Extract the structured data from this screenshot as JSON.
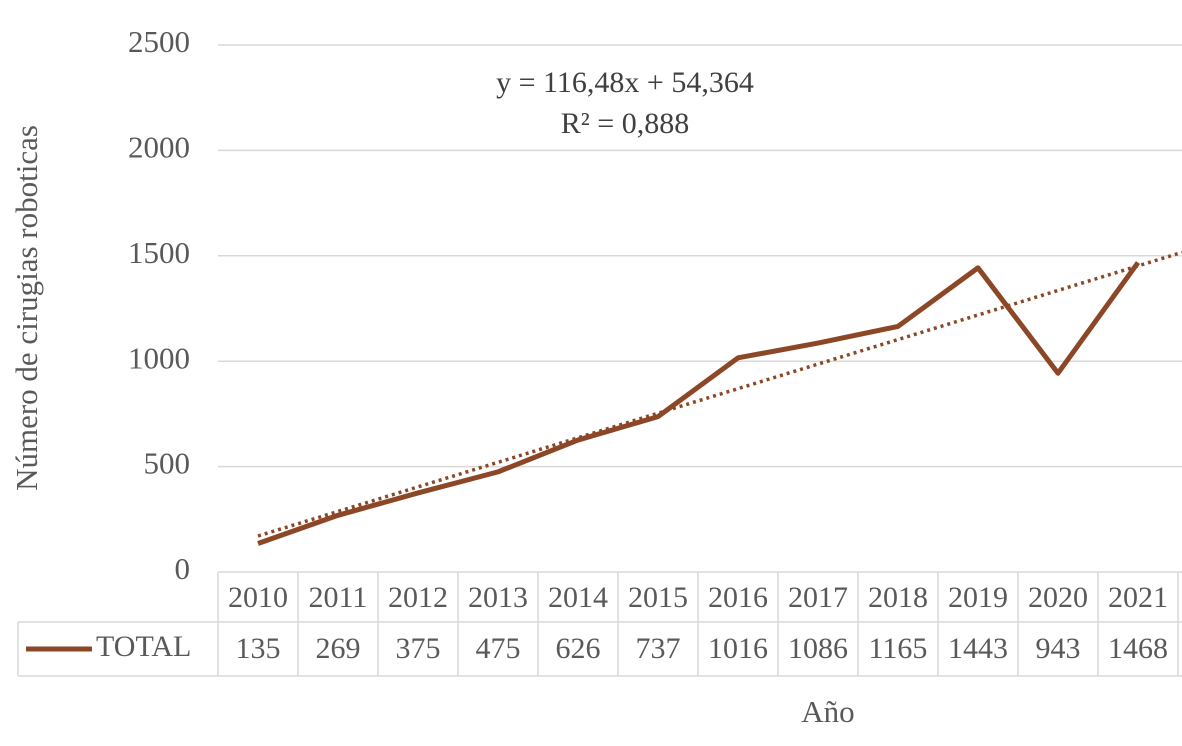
{
  "chart_data": {
    "type": "line",
    "y_label": "Número de cirugias roboticas",
    "x_label": "Año",
    "categories": [
      "2010",
      "2011",
      "2012",
      "2013",
      "2014",
      "2015",
      "2016",
      "2017",
      "2018",
      "2019",
      "2020",
      "2021"
    ],
    "series": [
      {
        "name": "TOTAL",
        "color": "#8b4726",
        "values": [
          135,
          269,
          375,
          475,
          626,
          737,
          1016,
          1086,
          1165,
          1443,
          943,
          1468
        ]
      }
    ],
    "ylim": [
      0,
      2500
    ],
    "yticks": [
      0,
      500,
      1000,
      1500,
      2000,
      2500
    ],
    "grid": true,
    "trendline": {
      "label": "y = 116,48x + 54,364",
      "r2_label": "R² = 0,888",
      "slope": 116.48,
      "intercept": 54.364
    }
  }
}
